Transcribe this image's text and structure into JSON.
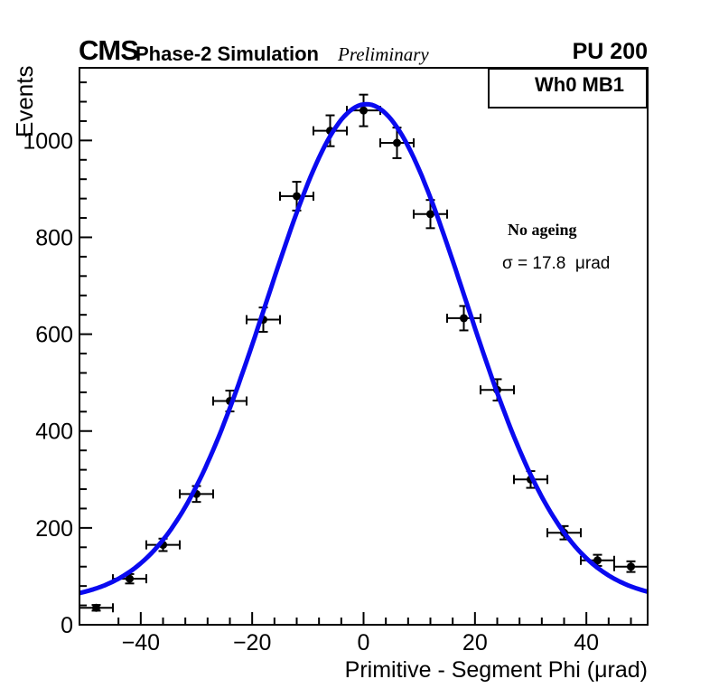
{
  "header": {
    "experiment": "CMS",
    "subtitle": "Phase-2 Simulation",
    "status": "Preliminary",
    "pileup": "PU 200"
  },
  "legend": {
    "label": "Wh0 MB1"
  },
  "annotations": {
    "ageing_label": "No ageing",
    "sigma_label": "σ = 17.8  μrad"
  },
  "chart_data": {
    "type": "scatter",
    "title": "",
    "xlabel": "Primitive - Segment Phi (μrad)",
    "ylabel": "Events",
    "xlim": [
      -51,
      51
    ],
    "ylim": [
      0,
      1150
    ],
    "grid": false,
    "legend_position": "top-right",
    "x_major_ticks": [
      -40,
      -20,
      0,
      20,
      40
    ],
    "x_minor_step": 4,
    "y_major_ticks": [
      0,
      200,
      400,
      600,
      800,
      1000
    ],
    "y_minor_step": 40,
    "points": {
      "x": [
        -48,
        -42,
        -36,
        -30,
        -24,
        -18,
        -12,
        -6,
        0,
        6,
        12,
        18,
        24,
        30,
        36,
        42,
        48
      ],
      "y": [
        35,
        95,
        165,
        270,
        462,
        630,
        885,
        1020,
        1062,
        995,
        848,
        633,
        485,
        300,
        190,
        133,
        120
      ],
      "yerr": [
        5.9,
        9.7,
        12.8,
        16.4,
        21.5,
        25.1,
        29.7,
        31.9,
        32.6,
        31.5,
        29.1,
        25.2,
        22.0,
        17.3,
        13.8,
        11.5,
        11.0
      ],
      "xerr": 3,
      "marker_color": "#000000"
    },
    "fit": {
      "shape": "gaussian_plus_constant",
      "amplitude": 1025,
      "mean": 0.5,
      "sigma": 17.8,
      "constant": 50,
      "sigma_urad": 17.8,
      "color": "#0a0af0"
    }
  }
}
